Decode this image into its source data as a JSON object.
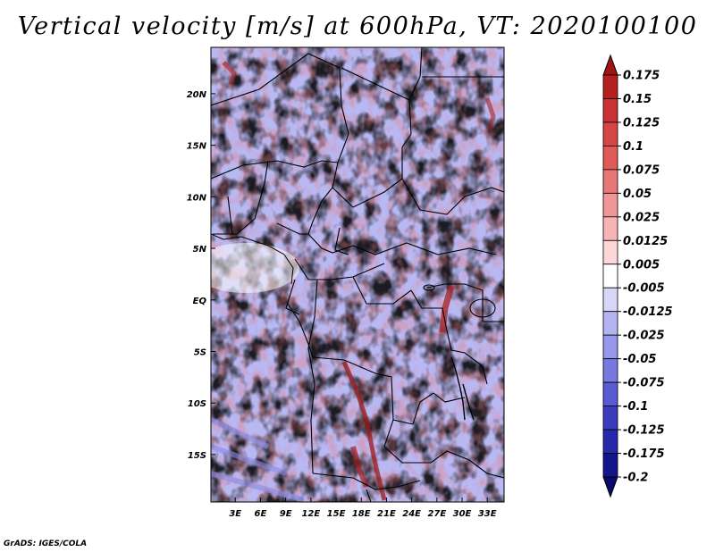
{
  "title": "Vertical velocity [m/s] at 600hPa, VT: 2020100100",
  "credit": "GrADS: IGES/COLA",
  "map": {
    "lon_labels": [
      "3E",
      "6E",
      "9E",
      "12E",
      "15E",
      "18E",
      "21E",
      "24E",
      "27E",
      "30E",
      "33E"
    ],
    "lat_labels": [
      "20N",
      "15N",
      "10N",
      "5N",
      "EQ",
      "5S",
      "10S",
      "15S"
    ],
    "extent": {
      "lon_min": 0.1,
      "lon_max": 35.0,
      "lat_min": -19.6,
      "lat_max": 24.5
    },
    "lon_ticks": [
      3,
      6,
      9,
      12,
      15,
      18,
      21,
      24,
      27,
      30,
      33
    ],
    "lat_ticks": [
      20,
      15,
      10,
      5,
      0,
      -5,
      -10,
      -15
    ]
  },
  "colorbar": {
    "labels": [
      "0.175",
      "0.15",
      "0.125",
      "0.1",
      "0.075",
      "0.05",
      "0.025",
      "0.0125",
      "0.005",
      "-0.005",
      "-0.0125",
      "-0.025",
      "-0.05",
      "-0.075",
      "-0.1",
      "-0.125",
      "-0.175",
      "-0.2"
    ],
    "colors": [
      "#a01414",
      "#b42020",
      "#c83232",
      "#d74646",
      "#e05a5a",
      "#e87878",
      "#f09696",
      "#f7b4b4",
      "#fcd7d7",
      "#ffffff",
      "#d7d7fa",
      "#b4b4f0",
      "#9696eb",
      "#7878e1",
      "#5a5ad2",
      "#3c3cbe",
      "#2828aa",
      "#14148c",
      "#0a0a6e"
    ]
  }
}
